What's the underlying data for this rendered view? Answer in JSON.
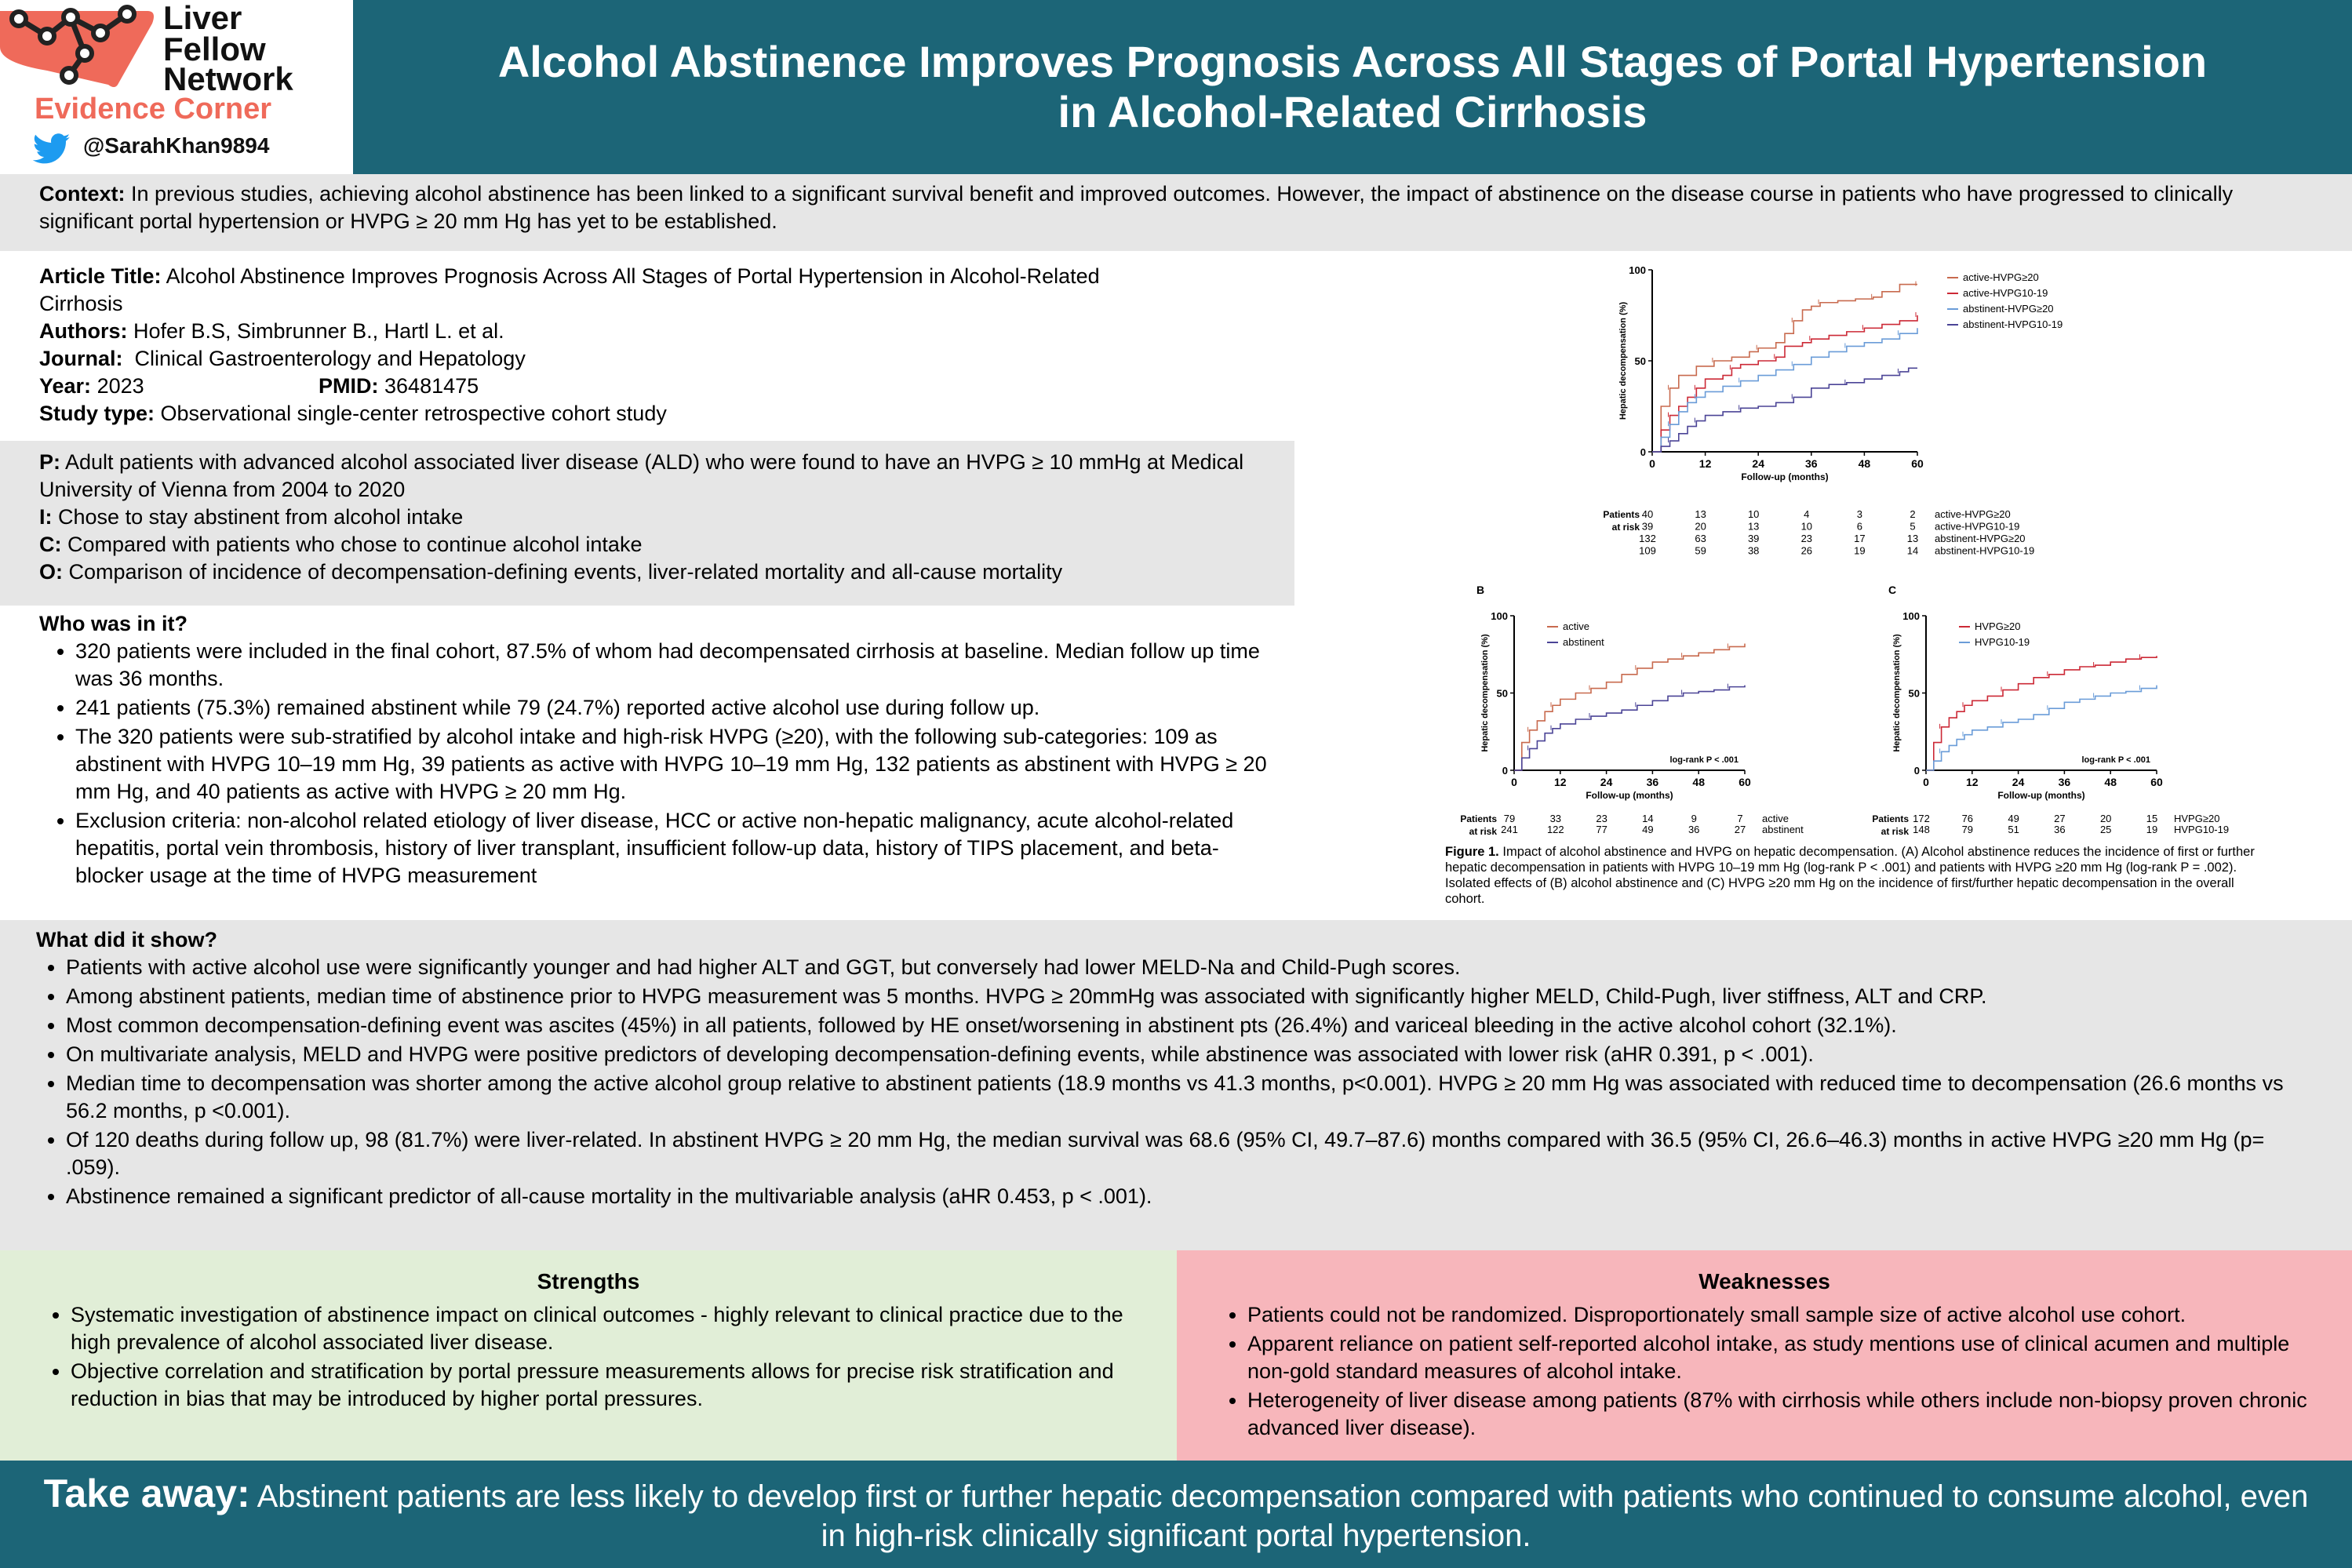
{
  "logo": {
    "line1": "Liver",
    "line2": "Fellow",
    "line3": "Network",
    "subtitle": "Evidence Corner",
    "handle": "@SarahKhan9894",
    "accent": "#ef6a5a",
    "icon": "twitter-bird-icon"
  },
  "title": {
    "line1": "Alcohol Abstinence Improves Prognosis Across All Stages of Portal Hypertension",
    "line2": "in Alcohol-Related Cirrhosis"
  },
  "context": {
    "label": "Context:",
    "text": "In previous studies, achieving alcohol abstinence has been linked to a significant survival benefit and improved outcomes. However, the impact of abstinence on the disease course in patients who have progressed to clinically significant portal hypertension or HVPG ≥ 20 mm Hg has yet to be established."
  },
  "article": {
    "title_label": "Article Title:",
    "title": "Alcohol Abstinence Improves Prognosis Across All Stages of Portal Hypertension in Alcohol-Related Cirrhosis",
    "authors_label": "Authors:",
    "authors": "Hofer B.S, Simbrunner B., Hartl L. et al.",
    "journal_label": "Journal:",
    "journal": "Clinical Gastroenterology and Hepatology",
    "year_label": "Year:",
    "year": "2023",
    "pmid_label": "PMID:",
    "pmid": "36481475",
    "type_label": "Study type:",
    "type": "Observational single-center retrospective cohort study"
  },
  "pico": [
    {
      "label": "P:",
      "text": "Adult patients with advanced alcohol associated liver disease (ALD) who were found to have an HVPG ≥ 10 mmHg at Medical University of Vienna from 2004 to 2020"
    },
    {
      "label": "I:",
      "text": "Chose to stay abstinent from alcohol intake"
    },
    {
      "label": "C:",
      "text": "Compared with patients who chose to continue alcohol intake"
    },
    {
      "label": "O:",
      "text": "Comparison of incidence of decompensation-defining events, liver-related mortality and all-cause mortality"
    }
  ],
  "who": {
    "heading": "Who was in it?",
    "items": [
      "320 patients were included in the final cohort, 87.5% of whom had decompensated cirrhosis at baseline. Median follow up time was 36 months.",
      "241 patients (75.3%) remained abstinent while 79 (24.7%) reported active alcohol use during follow up.",
      "The 320 patients were sub-stratified by alcohol intake and high-risk HVPG (≥20), with the following sub-categories: 109 as abstinent with HVPG 10–19 mm Hg, 39 patients as active with HVPG 10–19 mm Hg, 132 patients as abstinent with HVPG ≥ 20 mm Hg, and 40 patients as active with HVPG ≥ 20 mm Hg.",
      "Exclusion criteria: non-alcohol related etiology of liver disease, HCC or active non-hepatic malignancy, acute alcohol-related hepatitis, portal vein thrombosis, history of liver transplant, insufficient follow-up data, history of TIPS placement, and beta-blocker usage at the time of HVPG measurement"
    ]
  },
  "what": {
    "heading": "What did it show?",
    "items": [
      "Patients with active alcohol use were significantly younger and had higher ALT and GGT, but conversely had lower MELD-Na and Child-Pugh scores.",
      "Among abstinent patients, median time of abstinence prior to HVPG measurement was 5 months. HVPG ≥ 20mmHg was associated with significantly higher MELD, Child-Pugh, liver stiffness, ALT and CRP.",
      "Most common decompensation-defining event was ascites (45%) in all patients, followed by HE onset/worsening in abstinent pts (26.4%) and variceal bleeding in the active alcohol cohort (32.1%).",
      "On multivariate analysis, MELD and HVPG were positive predictors of developing decompensation-defining events, while abstinence was associated with lower risk (aHR 0.391, p < .001).",
      "Median time to decompensation was shorter among the active alcohol group relative to abstinent patients (18.9 months vs 41.3 months, p<0.001). HVPG ≥ 20 mm Hg was associated with reduced time to decompensation (26.6 months vs 56.2 months, p <0.001).",
      "Of 120 deaths during follow up, 98 (81.7%) were liver-related. In abstinent HVPG ≥ 20 mm Hg, the median survival was 68.6 (95% CI, 49.7–87.6) months compared with 36.5 (95% CI, 26.6–46.3) months in active HVPG ≥20 mm Hg (p= .059).",
      "Abstinence remained a significant predictor of all-cause mortality in the multivariable analysis (aHR 0.453, p < .001)."
    ]
  },
  "strengths": {
    "heading": "Strengths",
    "items": [
      "Systematic investigation of abstinence impact on clinical outcomes - highly relevant to clinical practice due to the high prevalence of alcohol associated liver disease.",
      "Objective correlation and stratification by portal pressure measurements allows for precise risk stratification and reduction in bias that may be introduced by higher portal pressures."
    ]
  },
  "weaknesses": {
    "heading": "Weaknesses",
    "items": [
      "Patients could not be randomized. Disproportionately small sample size of active alcohol use cohort.",
      "Apparent reliance on patient self-reported alcohol intake, as study mentions use of clinical acumen and multiple non-gold standard measures of alcohol intake.",
      "Heterogeneity of liver disease among patients (87% with cirrhosis while others include non-biopsy proven chronic advanced liver disease)."
    ]
  },
  "takeaway": {
    "label": "Take away:",
    "text": "Abstinent patients are less likely to develop first or further hepatic decompensation compared with patients who continued to consume alcohol, even in high-risk clinically significant portal hypertension."
  },
  "figure": {
    "caption_label": "Figure 1.",
    "caption": "Impact of alcohol abstinence and HVPG on hepatic decompensation. (A) Alcohol abstinence reduces the incidence of first or further hepatic decompensation in patients with HVPG 10–19 mm Hg (log-rank P < .001) and patients with HVPG ≥20 mm Hg (log-rank P = .002). Isolated effects of (B) alcohol abstinence and (C) HVPG ≥20 mm Hg on the incidence of first/further hepatic decompensation in the overall cohort.",
    "risk_label1": "Patients",
    "risk_label2": "at risk"
  },
  "chart_data": [
    {
      "type": "line",
      "ylabel": "Hepatic decompensation (%)",
      "xlabel": "Follow-up (months)",
      "xlim": [
        0,
        60
      ],
      "ylim": [
        0,
        100
      ],
      "xticks": [
        0,
        12,
        24,
        36,
        48,
        60
      ],
      "yticks": [
        0,
        50,
        100
      ],
      "legend": "top-right",
      "series": [
        {
          "name": "active-HVPG≥20",
          "color": "#c86a4e",
          "x": [
            0,
            2,
            4,
            6,
            10,
            14,
            18,
            22,
            24,
            28,
            30,
            32,
            34,
            36,
            38,
            42,
            46,
            50,
            52,
            56,
            60
          ],
          "y": [
            0,
            25,
            35,
            42,
            47,
            50,
            52,
            55,
            57,
            60,
            65,
            72,
            78,
            80,
            82,
            83,
            84,
            85,
            88,
            92,
            92
          ]
        },
        {
          "name": "active-HVPG10-19",
          "color": "#cc2936",
          "x": [
            0,
            2,
            4,
            6,
            8,
            10,
            12,
            16,
            18,
            20,
            24,
            28,
            30,
            34,
            36,
            40,
            44,
            48,
            52,
            56,
            60
          ],
          "y": [
            0,
            12,
            20,
            25,
            30,
            35,
            40,
            42,
            46,
            48,
            50,
            52,
            58,
            60,
            62,
            64,
            66,
            68,
            70,
            72,
            75
          ]
        },
        {
          "name": "abstinent-HVPG≥20",
          "color": "#6a9cd8",
          "x": [
            0,
            2,
            4,
            6,
            8,
            10,
            12,
            16,
            20,
            24,
            28,
            32,
            36,
            40,
            44,
            48,
            52,
            56,
            60
          ],
          "y": [
            0,
            8,
            15,
            22,
            27,
            30,
            33,
            36,
            39,
            42,
            45,
            48,
            52,
            55,
            58,
            60,
            62,
            65,
            68
          ]
        },
        {
          "name": "abstinent-HVPG10-19",
          "color": "#4b4496",
          "x": [
            0,
            2,
            4,
            6,
            8,
            10,
            12,
            16,
            20,
            24,
            28,
            32,
            36,
            40,
            44,
            48,
            52,
            56,
            58,
            60
          ],
          "y": [
            0,
            3,
            6,
            10,
            14,
            17,
            20,
            22,
            24,
            25,
            27,
            30,
            35,
            37,
            38,
            40,
            42,
            44,
            46,
            46
          ]
        }
      ],
      "risk_table": [
        {
          "name": "active-HVPG≥20",
          "values": [
            40,
            13,
            10,
            4,
            3,
            2
          ]
        },
        {
          "name": "active-HVPG10-19",
          "values": [
            39,
            20,
            13,
            10,
            6,
            5
          ]
        },
        {
          "name": "abstinent-HVPG≥20",
          "values": [
            132,
            63,
            39,
            23,
            17,
            13
          ]
        },
        {
          "name": "abstinent-HVPG10-19",
          "values": [
            109,
            59,
            38,
            26,
            19,
            14
          ]
        }
      ]
    },
    {
      "type": "line",
      "panel": "B",
      "ylabel": "Hepatic decompensation (%)",
      "xlabel": "Follow-up (months)",
      "xlim": [
        0,
        60
      ],
      "ylim": [
        0,
        100
      ],
      "xticks": [
        0,
        12,
        24,
        36,
        48,
        60
      ],
      "yticks": [
        0,
        50,
        100
      ],
      "annotation": "log-rank P < .001",
      "legend": "top-left",
      "series": [
        {
          "name": "active",
          "color": "#c86a4e",
          "x": [
            0,
            2,
            4,
            6,
            8,
            10,
            12,
            16,
            20,
            24,
            28,
            32,
            36,
            40,
            44,
            48,
            52,
            56,
            60
          ],
          "y": [
            0,
            18,
            26,
            32,
            38,
            42,
            46,
            50,
            53,
            57,
            62,
            66,
            70,
            72,
            74,
            76,
            78,
            80,
            82
          ]
        },
        {
          "name": "abstinent",
          "color": "#4b4496",
          "x": [
            0,
            2,
            4,
            6,
            8,
            10,
            12,
            16,
            20,
            24,
            28,
            32,
            36,
            40,
            44,
            48,
            52,
            56,
            60
          ],
          "y": [
            0,
            8,
            14,
            19,
            24,
            27,
            30,
            33,
            35,
            37,
            39,
            42,
            45,
            48,
            50,
            51,
            52,
            54,
            55
          ]
        }
      ],
      "risk_table": [
        {
          "name": "active",
          "values": [
            79,
            33,
            23,
            14,
            9,
            7
          ]
        },
        {
          "name": "abstinent",
          "values": [
            241,
            122,
            77,
            49,
            36,
            27
          ]
        }
      ]
    },
    {
      "type": "line",
      "panel": "C",
      "ylabel": "Hepatic decompensation (%)",
      "xlabel": "Follow-up (months)",
      "xlim": [
        0,
        60
      ],
      "ylim": [
        0,
        100
      ],
      "xticks": [
        0,
        12,
        24,
        36,
        48,
        60
      ],
      "yticks": [
        0,
        50,
        100
      ],
      "annotation": "log-rank P < .001",
      "legend": "top-left",
      "series": [
        {
          "name": "HVPG≥20",
          "color": "#cc2936",
          "x": [
            0,
            2,
            4,
            6,
            8,
            10,
            12,
            16,
            20,
            24,
            28,
            32,
            36,
            40,
            44,
            48,
            52,
            56,
            60
          ],
          "y": [
            0,
            18,
            28,
            34,
            38,
            42,
            45,
            48,
            52,
            56,
            60,
            62,
            65,
            67,
            68,
            70,
            72,
            73,
            74
          ]
        },
        {
          "name": "HVPG10-19",
          "color": "#6a9cd8",
          "x": [
            0,
            2,
            4,
            6,
            8,
            10,
            12,
            16,
            20,
            24,
            28,
            32,
            36,
            40,
            44,
            48,
            52,
            56,
            60
          ],
          "y": [
            0,
            6,
            12,
            16,
            20,
            23,
            26,
            28,
            31,
            33,
            36,
            40,
            44,
            46,
            48,
            50,
            51,
            53,
            55
          ]
        }
      ],
      "risk_table": [
        {
          "name": "HVPG≥20",
          "values": [
            172,
            76,
            49,
            27,
            20,
            15
          ]
        },
        {
          "name": "HVPG10-19",
          "values": [
            148,
            79,
            51,
            36,
            25,
            19
          ]
        }
      ]
    }
  ]
}
